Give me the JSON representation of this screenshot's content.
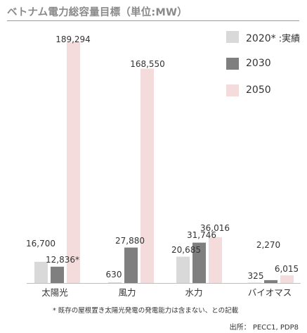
{
  "title": "ベトナム電力総容量目標（単位:MW）",
  "legend": [
    {
      "label": "2020*",
      "suffix": " :実績",
      "color": "#d9d9d9"
    },
    {
      "label": "2030",
      "suffix": "",
      "color": "#7f7f7f"
    },
    {
      "label": "2050",
      "suffix": "",
      "color": "#f4dcdc"
    }
  ],
  "footnote": "* 既存の屋根置き太陽光発電の発電能力は含まない、との記載",
  "source": "出所： PECC1, PDP8",
  "chart_data": {
    "type": "bar",
    "title": "ベトナム電力総容量目標（単位:MW）",
    "categories": [
      "太陽光",
      "風力",
      "水力",
      "バイオマス"
    ],
    "series": [
      {
        "name": "2020*",
        "color": "#d9d9d9",
        "values": [
          16700,
          630,
          20685,
          325
        ],
        "labels": [
          "16,700",
          "630",
          "20,685",
          "325"
        ]
      },
      {
        "name": "2030",
        "color": "#7f7f7f",
        "values": [
          12836,
          27880,
          31746,
          2270
        ],
        "labels": [
          "12,836*",
          "27,880",
          "31,746",
          "2,270"
        ]
      },
      {
        "name": "2050",
        "color": "#f4dcdc",
        "values": [
          189294,
          168550,
          36016,
          6015
        ],
        "labels": [
          "189,294",
          "168,550",
          "36,016",
          "6,015"
        ]
      }
    ],
    "ylim": [
      0,
      189294
    ],
    "legend_position": "top-right",
    "grid": false
  }
}
